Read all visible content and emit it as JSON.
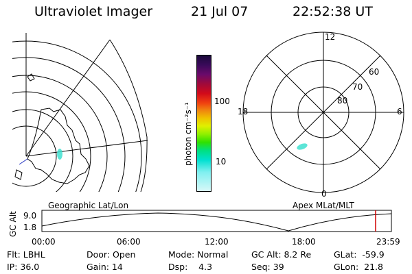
{
  "header": {
    "instrument": "Ultraviolet Imager",
    "date": "21 Jul 07",
    "time": "22:52:38 UT"
  },
  "colorbar": {
    "unit_label": "photon cm⁻²s⁻¹",
    "ticks": [
      "100",
      "10"
    ],
    "colors": [
      "#1a0a3a",
      "#3a0a5a",
      "#6a0a6a",
      "#a00a3a",
      "#d20a1a",
      "#f04010",
      "#f08010",
      "#f0c000",
      "#e0f000",
      "#90f000",
      "#30e000",
      "#00e080",
      "#00e0d0",
      "#80f0f0",
      "#d8f8f8"
    ]
  },
  "geographic_panel": {
    "label": "Geographic Lat/Lon"
  },
  "polar_panel": {
    "label": "Apex MLat/MLT",
    "mlt_labels": {
      "top": "12",
      "left": "18",
      "right": "6",
      "bottom": "0"
    },
    "lat_labels": [
      "60",
      "70",
      "80"
    ]
  },
  "timeline": {
    "axis_label": "GC Alt",
    "y_ticks": [
      "9.0",
      "1.8"
    ],
    "x_ticks": [
      "00:00",
      "06:00",
      "12:00",
      "18:00",
      "23:59"
    ],
    "marker_color": "#d00000"
  },
  "info": {
    "filter": "Flt: LBHL",
    "ip": "IP: 36.0",
    "door": "Door: Open",
    "gain": "Gain: 14",
    "mode": "Mode: Normal",
    "dsp": "Dsp:    4.3",
    "gc_alt": "GC Alt: 8.2 Re",
    "seq": "Seq: 39",
    "glat": "GLat:  -59.9",
    "glon": "GLon:  21.8"
  }
}
